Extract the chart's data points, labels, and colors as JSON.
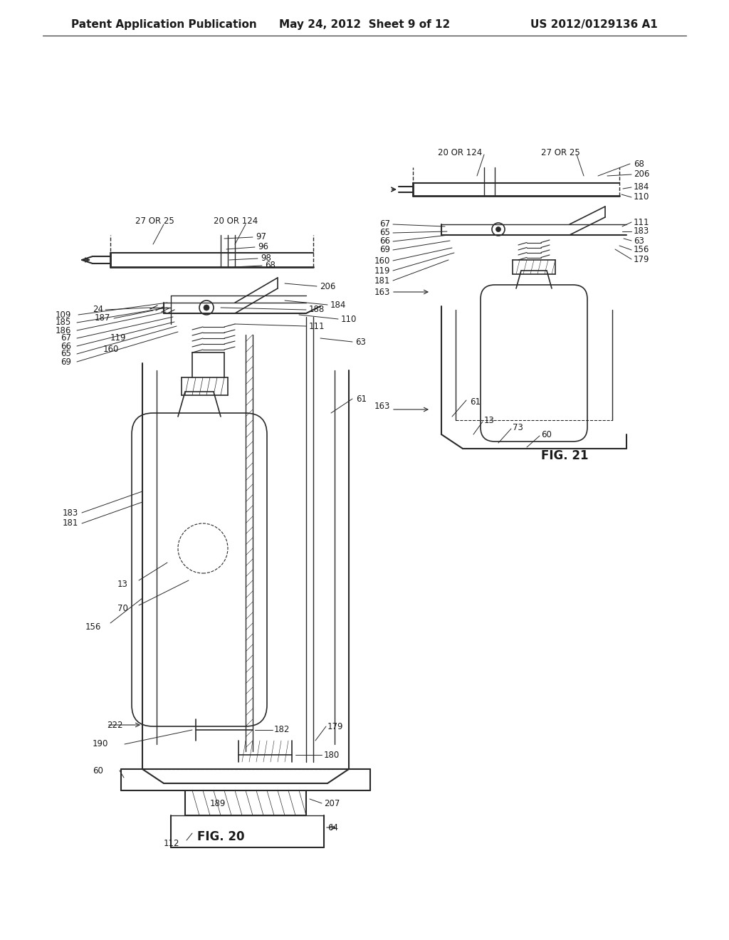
{
  "background_color": "#ffffff",
  "header_left": "Patent Application Publication",
  "header_center": "May 24, 2012  Sheet 9 of 12",
  "header_right": "US 2012/0129136 A1",
  "fig20_label": "FIG. 20",
  "fig21_label": "FIG. 21",
  "line_color": "#2a2a2a",
  "text_color": "#1a1a1a",
  "font_size_header": 11,
  "font_size_label": 10,
  "font_size_ref": 8.5,
  "dpi": 100
}
